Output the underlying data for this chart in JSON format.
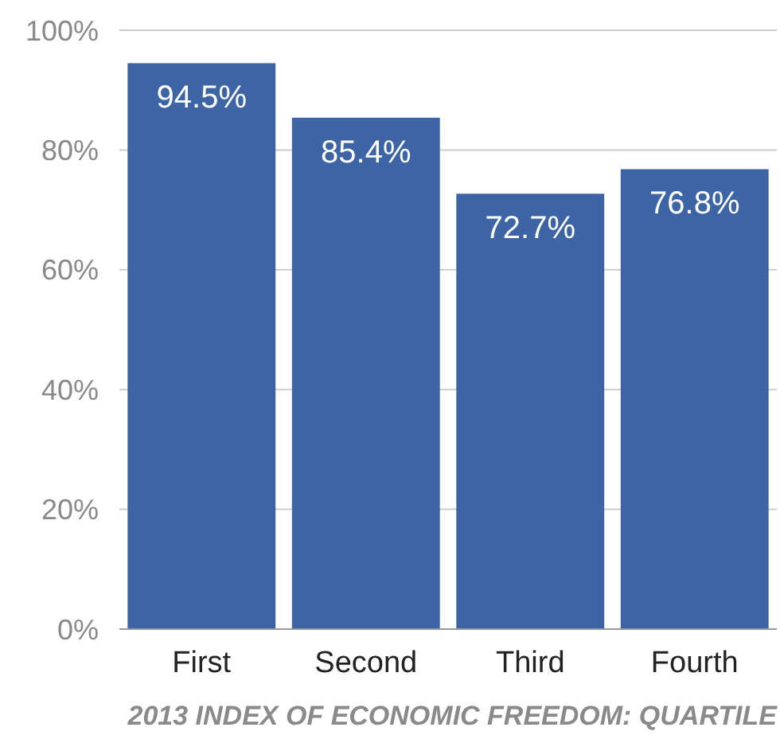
{
  "chart_data": {
    "type": "bar",
    "xlabel": "2013 INDEX OF ECONOMIC FREEDOM: QUARTILE",
    "categories": [
      "First",
      "Second",
      "Third",
      "Fourth"
    ],
    "values": [
      94.5,
      85.4,
      72.7,
      76.8
    ],
    "value_labels": [
      "94.5%",
      "85.4%",
      "72.7%",
      "76.8%"
    ],
    "color": "#3d64a5",
    "ylim": [
      0,
      100
    ],
    "yticks": [
      {
        "value": 0,
        "label": "0%"
      },
      {
        "value": 20,
        "label": "20%"
      },
      {
        "value": 40,
        "label": "40%"
      },
      {
        "value": 60,
        "label": "60%"
      },
      {
        "value": 80,
        "label": "80%"
      },
      {
        "value": 100,
        "label": "100%"
      }
    ],
    "grid": "y"
  }
}
